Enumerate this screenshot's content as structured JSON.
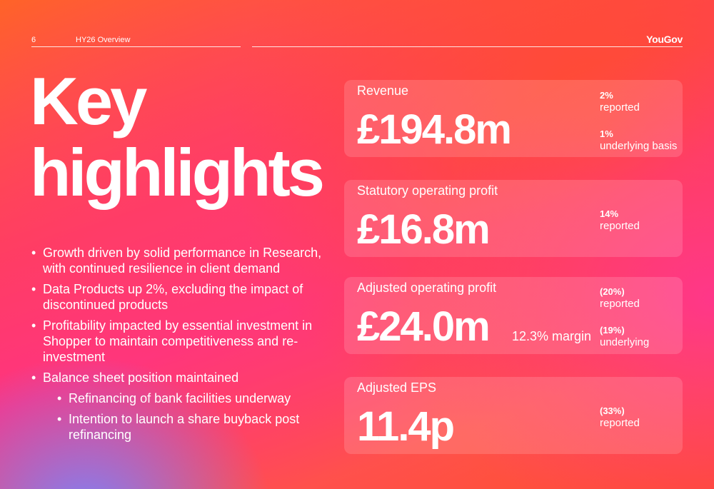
{
  "header": {
    "page_number": "6",
    "section": "HY26 Overview",
    "logo": "YouGov"
  },
  "title": {
    "line1": "Key",
    "line2": "highlights"
  },
  "bullets": [
    "Growth driven by solid performance in Research, with continued resilience in client demand",
    "Data Products up 2%, excluding the impact of discontinued products",
    "Profitability impacted by essential investment in Shopper to maintain competitiveness and re-investment",
    "Balance sheet position maintained"
  ],
  "sub_bullets": [
    "Refinancing of bank facilities underway",
    "Intention to launch a share buyback post refinancing"
  ],
  "metrics": [
    {
      "label": "Revenue",
      "value": "£194.8m",
      "changes": [
        {
          "value": "2%",
          "label": "reported"
        },
        {
          "value": "1%",
          "label": "underlying basis"
        }
      ]
    },
    {
      "label": "Statutory operating profit",
      "value": "£16.8m",
      "changes": [
        {
          "value": "14%",
          "label": "reported"
        }
      ]
    },
    {
      "label": "Adjusted operating profit",
      "value": "£24.0m",
      "note": "12.3% margin",
      "changes": [
        {
          "value": "(20%)",
          "label": "reported"
        },
        {
          "value": "(19%)",
          "label": "underlying"
        }
      ]
    },
    {
      "label": "Adjusted EPS",
      "value": "11.4p",
      "changes": [
        {
          "value": "(33%)",
          "label": "reported"
        }
      ]
    }
  ],
  "colors": {
    "text": "#ffffff",
    "primary": "#ff4e2a",
    "secondary": "#ff2f8a",
    "accent": "#7d84ff"
  }
}
